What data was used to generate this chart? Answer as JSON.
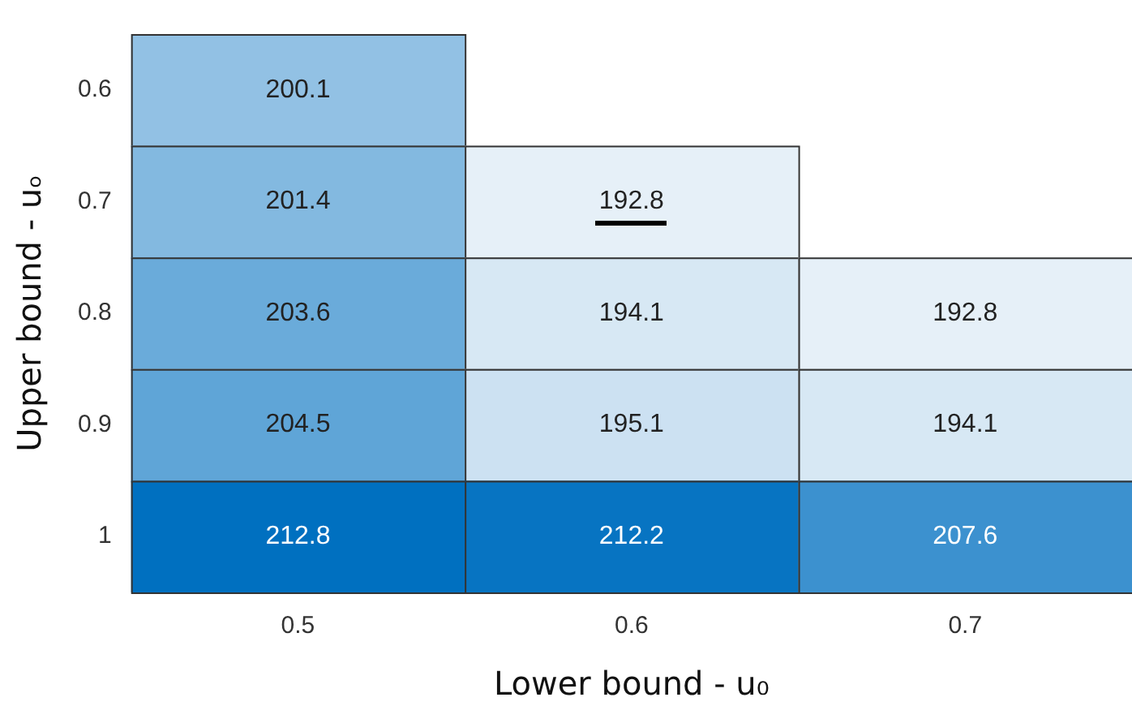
{
  "chart_data": {
    "type": "heatmap",
    "xlabel": "Lower bound - u₀",
    "ylabel": "Upper bound - uₒ",
    "categories": [
      "0.5",
      "0.6",
      "0.7"
    ],
    "y_categories": [
      "0.6",
      "0.7",
      "0.8",
      "0.9",
      "1"
    ],
    "cells": [
      [
        200.1,
        null,
        null
      ],
      [
        201.4,
        192.8,
        null
      ],
      [
        203.6,
        194.1,
        192.8
      ],
      [
        204.5,
        195.1,
        194.1
      ],
      [
        212.8,
        212.2,
        207.6
      ]
    ],
    "data_labels": true,
    "grid": false
  }
}
